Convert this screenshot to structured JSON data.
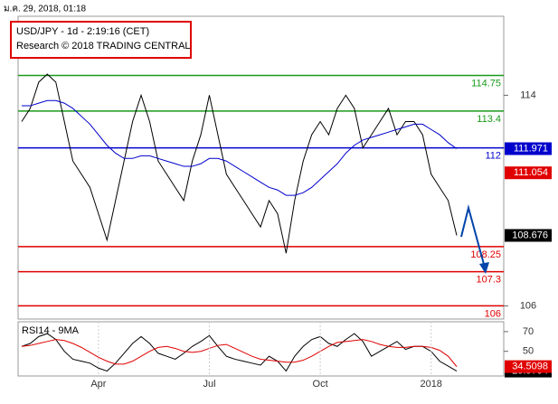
{
  "header": {
    "timestamp": "ม.ค. 29, 2018, 01:18"
  },
  "chart_data": [
    {
      "type": "line",
      "title": "USD/JPY - 1d - 2:19:16 (CET)",
      "subtitle": "Research © 2018 TRADING CENTRAL",
      "categories": [
        null,
        null,
        null,
        null,
        null,
        null,
        null,
        null,
        null,
        "Apr",
        null,
        null,
        null,
        null,
        null,
        null,
        null,
        null,
        null,
        null,
        null,
        null,
        "Jul",
        null,
        null,
        null,
        null,
        null,
        null,
        null,
        null,
        null,
        null,
        null,
        null,
        "Oct",
        null,
        null,
        null,
        null,
        null,
        null,
        null,
        null,
        null,
        null,
        null,
        null,
        "2018",
        null,
        null,
        null
      ],
      "series": [
        {
          "color": "#000000",
          "values": [
            113,
            113.5,
            114.5,
            114.8,
            114.5,
            113,
            111.5,
            111,
            110.5,
            109.5,
            108.5,
            110,
            111.5,
            113,
            114,
            113,
            111.5,
            111,
            110.5,
            110,
            111.5,
            112.5,
            114,
            112.5,
            111,
            110.5,
            110,
            109.5,
            109,
            110,
            109.5,
            108,
            110,
            111.5,
            112.5,
            113,
            112.5,
            113.5,
            114,
            113.5,
            112,
            112.5,
            113,
            113.5,
            112.5,
            113,
            113,
            112.5,
            111,
            110.5,
            110,
            108.676
          ]
        },
        {
          "color": "#0000cc",
          "values": [
            113.6,
            113.6,
            113.7,
            113.8,
            113.8,
            113.7,
            113.5,
            113.2,
            112.9,
            112.5,
            112.1,
            111.8,
            111.6,
            111.6,
            111.7,
            111.7,
            111.6,
            111.5,
            111.4,
            111.3,
            111.3,
            111.4,
            111.6,
            111.6,
            111.5,
            111.3,
            111.1,
            110.9,
            110.7,
            110.5,
            110.4,
            110.2,
            110.2,
            110.3,
            110.5,
            110.8,
            111.1,
            111.4,
            111.8,
            112.1,
            112.3,
            112.4,
            112.5,
            112.6,
            112.7,
            112.8,
            112.9,
            112.9,
            112.7,
            112.5,
            112.2,
            111.971
          ]
        }
      ],
      "levels": [
        {
          "value": 114.75,
          "color": "#1a9a1a"
        },
        {
          "value": 113.4,
          "color": "#1a9a1a"
        },
        {
          "value": 112,
          "color": "#0000cc"
        },
        {
          "value": 108.25,
          "color": "#e00000"
        },
        {
          "value": 107.3,
          "color": "#e00000"
        },
        {
          "value": 106,
          "color": "#e00000"
        }
      ],
      "markers": [
        {
          "value": 111.054,
          "color": "#e00000"
        }
      ],
      "ylim": [
        105.5,
        117
      ],
      "yticks": [
        114,
        112,
        106
      ]
    },
    {
      "type": "line",
      "title": "RSI14 - 9MA",
      "series": [
        {
          "color": "#000000",
          "values": [
            55,
            58,
            65,
            68,
            62,
            50,
            42,
            40,
            38,
            33,
            30,
            38,
            48,
            58,
            65,
            58,
            48,
            45,
            42,
            48,
            55,
            60,
            66,
            55,
            45,
            42,
            40,
            38,
            36,
            45,
            40,
            30,
            45,
            55,
            62,
            65,
            58,
            55,
            62,
            68,
            60,
            45,
            50,
            55,
            60,
            52,
            55,
            55,
            50,
            40,
            35,
            29.9794
          ]
        },
        {
          "color": "#e00000",
          "values": [
            55,
            56,
            58,
            60,
            62,
            61,
            58,
            54,
            49,
            44,
            40,
            37,
            37,
            40,
            45,
            50,
            54,
            55,
            53,
            50,
            49,
            50,
            53,
            56,
            57,
            53,
            49,
            45,
            42,
            41,
            40,
            39,
            39,
            41,
            45,
            50,
            55,
            59,
            60,
            61,
            62,
            60,
            57,
            55,
            54,
            54,
            55,
            55,
            54,
            51,
            45,
            34.5098
          ]
        }
      ],
      "ylim": [
        25,
        80
      ],
      "yticks": [
        70,
        50
      ]
    }
  ]
}
